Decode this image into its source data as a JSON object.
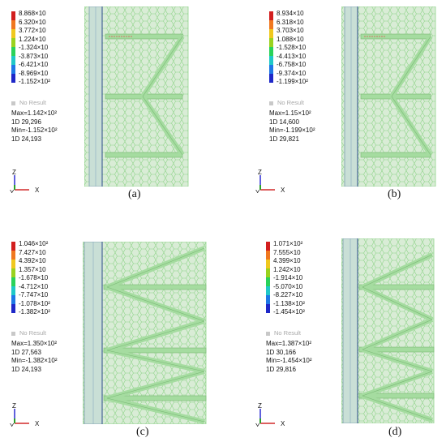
{
  "panels": [
    {
      "caption": "(a)",
      "legend": [
        "8.868×10",
        "6.320×10",
        "3.772×10",
        "1.224×10",
        "-1.324×10",
        "-3.873×10",
        "-6.421×10",
        "-8.969×10",
        "-1.152×10²"
      ],
      "no_result": "No Result",
      "stats": [
        "Max=1.142×10²",
        "1D 29,296",
        "Min=-1.152×10²",
        "1D 24,193"
      ],
      "axis": {
        "z": "Z",
        "y": "Y",
        "x": "X"
      }
    },
    {
      "caption": "(b)",
      "legend": [
        "8.934×10",
        "6.318×10",
        "3.703×10",
        "1.088×10",
        "-1.528×10",
        "-4.413×10",
        "-6.758×10",
        "-9.374×10",
        "-1.199×10²"
      ],
      "no_result": "No Result",
      "stats": [
        "Max=1.15×10²",
        "1D 14,600",
        "Min=-1.199×10²",
        "1D 29,821"
      ],
      "axis": {
        "z": "Z",
        "y": "Y",
        "x": "X"
      }
    },
    {
      "caption": "(c)",
      "legend": [
        "1.046×10²",
        "7.427×10",
        "4.392×10",
        "1.357×10",
        "-1.678×10",
        "-4.712×10",
        "-7.747×10",
        "-1.078×10²",
        "-1.382×10²"
      ],
      "no_result": "No Result",
      "stats": [
        "Max=1.350×10²",
        "1D 27,563",
        "Min=-1.382×10²",
        "1D 24,193"
      ],
      "axis": {
        "z": "Z",
        "y": "Y",
        "x": "X"
      }
    },
    {
      "caption": "(d)",
      "legend": [
        "1.071×10²",
        "7.555×10",
        "4.399×10",
        "1.242×10",
        "-1.914×10",
        "-5.070×10",
        "-8.227×10",
        "-1.138×10²",
        "-1.454×10²"
      ],
      "no_result": "No Result",
      "stats": [
        "Max=1.387×10²",
        "1D 30,166",
        "Min=-1.454×10²",
        "1D 29,816"
      ],
      "axis": {
        "z": "Z",
        "y": "Y",
        "x": "X"
      }
    }
  ],
  "colors": {
    "scale": [
      "#d21e1e",
      "#f07820",
      "#f0c81e",
      "#9ad21e",
      "#2ad25a",
      "#20c8c8",
      "#1e78e6",
      "#1e28c8"
    ],
    "mesh_fill": "#d9ecd6",
    "mesh_line": "#8fd48a",
    "panel_band": "#6a8fa8",
    "stiffener": "#a5dca0"
  }
}
